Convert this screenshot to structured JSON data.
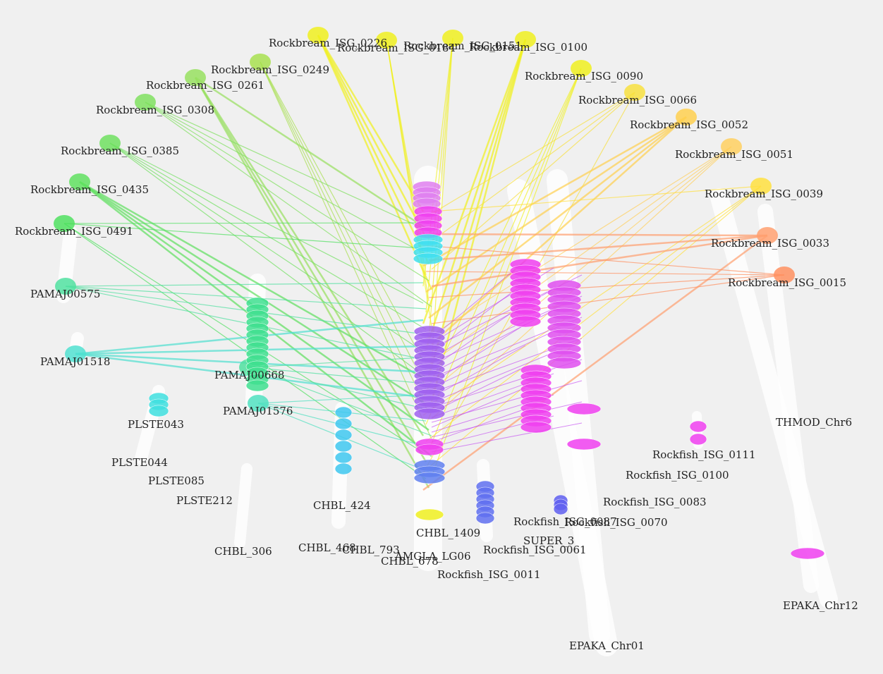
{
  "labels": [
    "Rockbream_ISG_0226",
    "Rockbream_ISG_0184",
    "Rockbream_ISG_0151",
    "Rockbream_ISG_0100",
    "Rockbream_ISG_0249",
    "Rockbream_ISG_0090",
    "Rockbream_ISG_0261",
    "Rockbream_ISG_0066",
    "Rockbream_ISG_0308",
    "Rockbream_ISG_0052",
    "Rockbream_ISG_0385",
    "Rockbream_ISG_0051",
    "Rockbream_ISG_0435",
    "Rockbream_ISG_0039",
    "Rockbream_ISG_0491",
    "Rockbream_ISG_0033",
    "Rockbream_ISG_0015",
    "PAMAJ00575",
    "PAMAJ01518",
    "PAMAJ00668",
    "PAMAJ01576",
    "PLSTE043",
    "THMOD_Chr6",
    "Rockfish_ISG_0111",
    "PLSTE044",
    "Rockfish_ISG_0100",
    "PLSTE085",
    "PLSTE212",
    "Rockfish_ISG_0083",
    "CHBL_424",
    "Rockfish_ISG_0087",
    "Rockfish_ISG_0070",
    "CHBL_1409",
    "SUPER_3",
    "CHBL_468",
    "CHBL_793",
    "Rockfish_ISG_0061",
    "CHBL_306",
    "AMGLA_LG06",
    "CHBL_678",
    "Rockfish_ISG_0011",
    "EPAKA_Chr12",
    "EPAKA_Chr01"
  ]
}
